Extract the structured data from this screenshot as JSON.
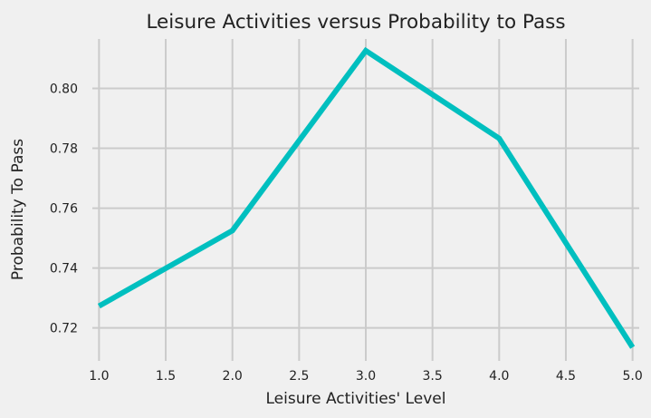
{
  "chart_data": {
    "type": "line",
    "title": "Leisure Activities versus Probability to Pass",
    "xlabel": "Leisure Activities' Level",
    "ylabel": "Probability To Pass",
    "x": [
      1,
      2,
      3,
      4,
      5
    ],
    "series": [
      {
        "values": [
          0.7273,
          0.7525,
          0.8126,
          0.7833,
          0.7135
        ]
      }
    ],
    "xlim": [
      0.95,
      5.05
    ],
    "ylim": [
      0.709,
      0.8165
    ],
    "xticks": [
      1.0,
      1.5,
      2.0,
      2.5,
      3.0,
      3.5,
      4.0,
      4.5,
      5.0
    ],
    "xtick_labels": [
      "1.0",
      "1.5",
      "2.0",
      "2.5",
      "3.0",
      "3.5",
      "4.0",
      "4.5",
      "5.0"
    ],
    "yticks": [
      0.72,
      0.74,
      0.76,
      0.78,
      0.8
    ],
    "ytick_labels": [
      "0.72",
      "0.74",
      "0.76",
      "0.78",
      "0.80"
    ],
    "grid": true,
    "legend": "none",
    "colors": {
      "line": "#00bfbf",
      "grid": "#cbcbcb",
      "background": "#f0f0f0",
      "text": "#222222"
    }
  }
}
